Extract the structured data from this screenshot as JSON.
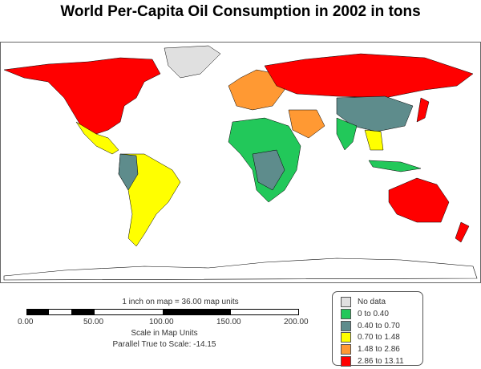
{
  "title": "World Per-Capita Oil Consumption in 2002 in tons",
  "scale": {
    "caption": "1 inch on map = 36.00 map units",
    "ticks": [
      "0.00",
      "50.00",
      "100.00",
      "150.00",
      "200.00"
    ],
    "units_label": "Scale in Map Units",
    "parallel": "Parallel True to Scale: -14.15"
  },
  "legend": [
    {
      "label": "No data",
      "color": "#e0e0e0"
    },
    {
      "label": "0 to 0.40",
      "color": "#22c85a"
    },
    {
      "label": "0.40 to 0.70",
      "color": "#5e8c8c"
    },
    {
      "label": "0.70 to 1.48",
      "color": "#ffff00"
    },
    {
      "label": "1.48 to 2.86",
      "color": "#ff9933"
    },
    {
      "label": "2.86 to 13.11",
      "color": "#ff0000"
    }
  ]
}
